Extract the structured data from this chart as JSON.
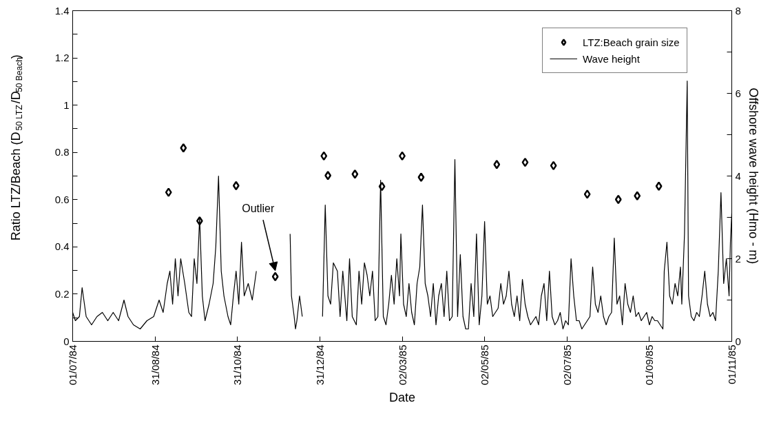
{
  "chart_data": {
    "type": "scatter",
    "xlabel": "Date",
    "ylabel": "Ratio LTZ/Beach (D$_{50 LTZ}$/D$_{50 Beach}$)",
    "y2label": "Offshore wave height (Hmo - m)",
    "xlim": [
      "1984-07-01",
      "1985-11-01"
    ],
    "xticks": [
      {
        "value": "1984-07-01",
        "label": "01/07/84"
      },
      {
        "value": "1984-08-31",
        "label": "31/08/84"
      },
      {
        "value": "1984-10-31",
        "label": "31/10/84"
      },
      {
        "value": "1984-12-31",
        "label": "31/12/84"
      },
      {
        "value": "1985-03-02",
        "label": "02/03/85"
      },
      {
        "value": "1985-05-02",
        "label": "02/05/85"
      },
      {
        "value": "1985-07-02",
        "label": "02/07/85"
      },
      {
        "value": "1985-09-01",
        "label": "01/09/85"
      },
      {
        "value": "1985-11-01",
        "label": "01/11/85"
      }
    ],
    "ylim": [
      0,
      1.4
    ],
    "yticks": [
      0,
      {
        "value": 0.1,
        "label": null
      },
      0.2,
      {
        "value": 0.3,
        "label": null
      },
      0.4,
      {
        "value": 0.5,
        "label": null
      },
      0.6,
      {
        "value": 0.7,
        "label": null
      },
      0.8,
      {
        "value": 0.9,
        "label": null
      },
      1,
      {
        "value": 1.1,
        "label": null
      },
      1.2,
      {
        "value": 1.3,
        "label": null
      },
      1.4
    ],
    "y2lim": [
      0,
      8
    ],
    "y2ticks": [
      0,
      {
        "value": 1,
        "label": null
      },
      2,
      {
        "value": 3,
        "label": null
      },
      4,
      {
        "value": 5,
        "label": null
      },
      6,
      {
        "value": 7,
        "label": null
      },
      8
    ],
    "grid": false,
    "legend": "top right",
    "annotations": [
      {
        "text": "Outlier",
        "x": "1984-11-28",
        "y": 0.274
      }
    ],
    "series": [
      {
        "name": "LTZ:Beach grain size",
        "type": "scatter",
        "marker": "diamond",
        "color": "#000000",
        "x": [
          "1984-09-10",
          "1984-09-21",
          "1984-10-03",
          "1984-10-30",
          "1984-11-28",
          "1985-01-03",
          "1985-01-06",
          "1985-01-26",
          "1985-02-15",
          "1985-03-02",
          "1985-03-16",
          "1985-05-11",
          "1985-06-01",
          "1985-06-22",
          "1985-07-17",
          "1985-08-09",
          "1985-08-23",
          "1985-09-08"
        ],
        "values": [
          0.631,
          0.819,
          0.51,
          0.659,
          0.274,
          0.785,
          0.702,
          0.708,
          0.656,
          0.785,
          0.695,
          0.749,
          0.758,
          0.744,
          0.623,
          0.601,
          0.616,
          0.657
        ]
      },
      {
        "name": "Wave height",
        "type": "line",
        "axis": "y2",
        "color": "#000000",
        "line_style": "solid",
        "x": [
          "1984-07-01",
          "1984-07-03",
          "1984-07-06",
          "1984-07-08",
          "1984-07-11",
          "1984-07-15",
          "1984-07-19",
          "1984-07-23",
          "1984-07-27",
          "1984-07-31",
          "1984-08-04",
          "1984-08-08",
          "1984-08-11",
          "1984-08-15",
          "1984-08-20",
          "1984-08-25",
          "1984-08-30",
          "1984-09-03",
          "1984-09-06",
          "1984-09-09",
          "1984-09-11",
          "1984-09-13",
          "1984-09-15",
          "1984-09-17",
          "1984-09-19",
          "1984-09-22",
          "1984-09-25",
          "1984-09-27",
          "1984-09-29",
          "1984-10-01",
          "1984-10-03",
          "1984-10-05",
          "1984-10-07",
          "1984-10-10",
          "1984-10-13",
          "1984-10-15",
          "1984-10-17",
          "1984-10-19",
          "1984-10-21",
          "1984-10-24",
          "1984-10-26",
          "1984-10-28",
          "1984-10-30",
          "1984-11-01",
          "1984-11-03",
          "1984-11-05",
          "1984-11-08",
          "1984-11-11",
          "1984-11-14",
          "1984-11-20",
          "1984-12-09",
          "1984-12-10",
          "1984-12-12",
          "1984-12-13",
          "1984-12-14",
          "1984-12-16",
          "1984-12-18",
          "1984-12-25",
          "1985-01-02",
          "1985-01-04",
          "1985-01-06",
          "1985-01-08",
          "1985-01-10",
          "1985-01-13",
          "1985-01-15",
          "1985-01-17",
          "1985-01-20",
          "1985-01-22",
          "1985-01-24",
          "1985-01-27",
          "1985-01-29",
          "1985-01-31",
          "1985-02-02",
          "1985-02-04",
          "1985-02-06",
          "1985-02-08",
          "1985-02-10",
          "1985-02-12",
          "1985-02-14",
          "1985-02-16",
          "1985-02-18",
          "1985-02-20",
          "1985-02-22",
          "1985-02-24",
          "1985-02-26",
          "1985-02-28",
          "1985-03-01",
          "1985-03-03",
          "1985-03-05",
          "1985-03-07",
          "1985-03-09",
          "1985-03-11",
          "1985-03-13",
          "1985-03-15",
          "1985-03-17",
          "1985-03-19",
          "1985-03-21",
          "1985-03-23",
          "1985-03-25",
          "1985-03-27",
          "1985-03-29",
          "1985-03-31",
          "1985-04-02",
          "1985-04-04",
          "1985-04-06",
          "1985-04-08",
          "1985-04-10",
          "1985-04-12",
          "1985-04-14",
          "1985-04-16",
          "1985-04-18",
          "1985-04-20",
          "1985-04-22",
          "1985-04-24",
          "1985-04-26",
          "1985-04-28",
          "1985-04-30",
          "1985-05-02",
          "1985-05-04",
          "1985-05-06",
          "1985-05-08",
          "1985-05-10",
          "1985-05-12",
          "1985-05-14",
          "1985-05-16",
          "1985-05-18",
          "1985-05-20",
          "1985-05-22",
          "1985-05-24",
          "1985-05-26",
          "1985-05-28",
          "1985-05-30",
          "1985-06-01",
          "1985-06-03",
          "1985-06-05",
          "1985-06-07",
          "1985-06-09",
          "1985-06-11",
          "1985-06-13",
          "1985-06-15",
          "1985-06-17",
          "1985-06-19",
          "1985-06-21",
          "1985-06-23",
          "1985-06-25",
          "1985-06-27",
          "1985-06-29",
          "1985-07-01",
          "1985-07-03",
          "1985-07-05",
          "1985-07-07",
          "1985-07-09",
          "1985-07-11",
          "1985-07-13",
          "1985-07-15",
          "1985-07-17",
          "1985-07-19",
          "1985-07-21",
          "1985-07-23",
          "1985-07-25",
          "1985-07-27",
          "1985-07-29",
          "1985-07-31",
          "1985-08-02",
          "1985-08-04",
          "1985-08-06",
          "1985-08-08",
          "1985-08-10",
          "1985-08-12",
          "1985-08-14",
          "1985-08-16",
          "1985-08-18",
          "1985-08-20",
          "1985-08-22",
          "1985-08-24",
          "1985-08-26",
          "1985-08-28",
          "1985-08-30",
          "1985-09-01",
          "1985-09-03",
          "1985-09-05",
          "1985-09-07",
          "1985-09-09",
          "1985-09-11",
          "1985-09-12",
          "1985-09-14",
          "1985-09-16",
          "1985-09-18",
          "1985-09-20",
          "1985-09-22",
          "1985-09-24",
          "1985-09-25",
          "1985-09-27",
          "1985-09-29",
          "1985-09-30",
          "1985-10-02",
          "1985-10-04",
          "1985-10-06",
          "1985-10-08",
          "1985-10-10",
          "1985-10-12",
          "1985-10-14",
          "1985-10-16",
          "1985-10-18",
          "1985-10-20",
          "1985-10-22",
          "1985-10-24",
          "1985-10-26",
          "1985-10-28",
          "1985-10-30",
          "1985-10-31",
          "1985-11-01"
        ],
        "values": [
          0.7,
          0.5,
          0.6,
          1.3,
          0.6,
          0.4,
          0.6,
          0.7,
          0.5,
          0.7,
          0.5,
          1.0,
          0.6,
          0.4,
          0.3,
          0.5,
          0.6,
          1.0,
          0.7,
          1.4,
          1.7,
          0.9,
          2.0,
          1.1,
          2.0,
          1.4,
          0.7,
          0.6,
          2.0,
          1.4,
          3.0,
          1.1,
          0.5,
          0.9,
          1.4,
          2.3,
          4.0,
          1.7,
          1.1,
          0.6,
          0.4,
          1.1,
          1.7,
          0.9,
          2.4,
          1.1,
          1.4,
          1.0,
          1.7,
          null,
          2.6,
          1.1,
          0.6,
          0.3,
          0.5,
          1.1,
          0.6,
          null,
          0.6,
          3.3,
          1.1,
          0.9,
          1.9,
          1.7,
          0.6,
          1.7,
          0.5,
          2.0,
          0.6,
          0.4,
          1.7,
          0.9,
          1.9,
          1.6,
          1.1,
          1.7,
          0.5,
          0.6,
          3.9,
          0.6,
          0.4,
          0.9,
          1.6,
          0.9,
          2.0,
          1.1,
          2.6,
          0.9,
          0.6,
          1.4,
          0.7,
          0.4,
          1.4,
          1.8,
          3.3,
          1.4,
          1.1,
          0.6,
          1.4,
          0.4,
          1.1,
          1.4,
          0.6,
          1.7,
          0.5,
          0.6,
          4.4,
          0.6,
          2.1,
          0.6,
          0.3,
          0.3,
          1.4,
          0.6,
          2.6,
          0.4,
          1.1,
          2.9,
          0.9,
          1.1,
          0.6,
          0.7,
          0.8,
          1.4,
          0.9,
          1.1,
          1.7,
          0.9,
          0.6,
          1.1,
          0.5,
          1.5,
          0.9,
          0.6,
          0.4,
          0.5,
          0.6,
          0.4,
          1.1,
          1.4,
          0.5,
          1.7,
          0.6,
          0.4,
          0.5,
          0.7,
          0.3,
          0.5,
          0.4,
          2.0,
          1.1,
          0.5,
          0.5,
          0.3,
          0.4,
          0.5,
          0.6,
          1.8,
          0.9,
          0.7,
          1.1,
          0.6,
          0.4,
          0.6,
          0.7,
          2.5,
          0.9,
          1.1,
          0.4,
          1.4,
          0.9,
          0.7,
          1.1,
          0.6,
          0.7,
          0.5,
          0.6,
          0.7,
          0.4,
          0.6,
          0.5,
          0.5,
          0.4,
          0.3,
          1.7,
          2.4,
          1.1,
          0.9,
          1.4,
          1.1,
          1.8,
          0.9,
          2.6,
          6.3,
          1.1,
          0.6,
          0.5,
          0.7,
          0.6,
          1.1,
          1.7,
          0.9,
          0.6,
          0.7,
          0.5,
          1.7,
          3.6,
          1.4,
          2.0,
          1.1,
          2.4,
          3.1
        ]
      }
    ]
  }
}
